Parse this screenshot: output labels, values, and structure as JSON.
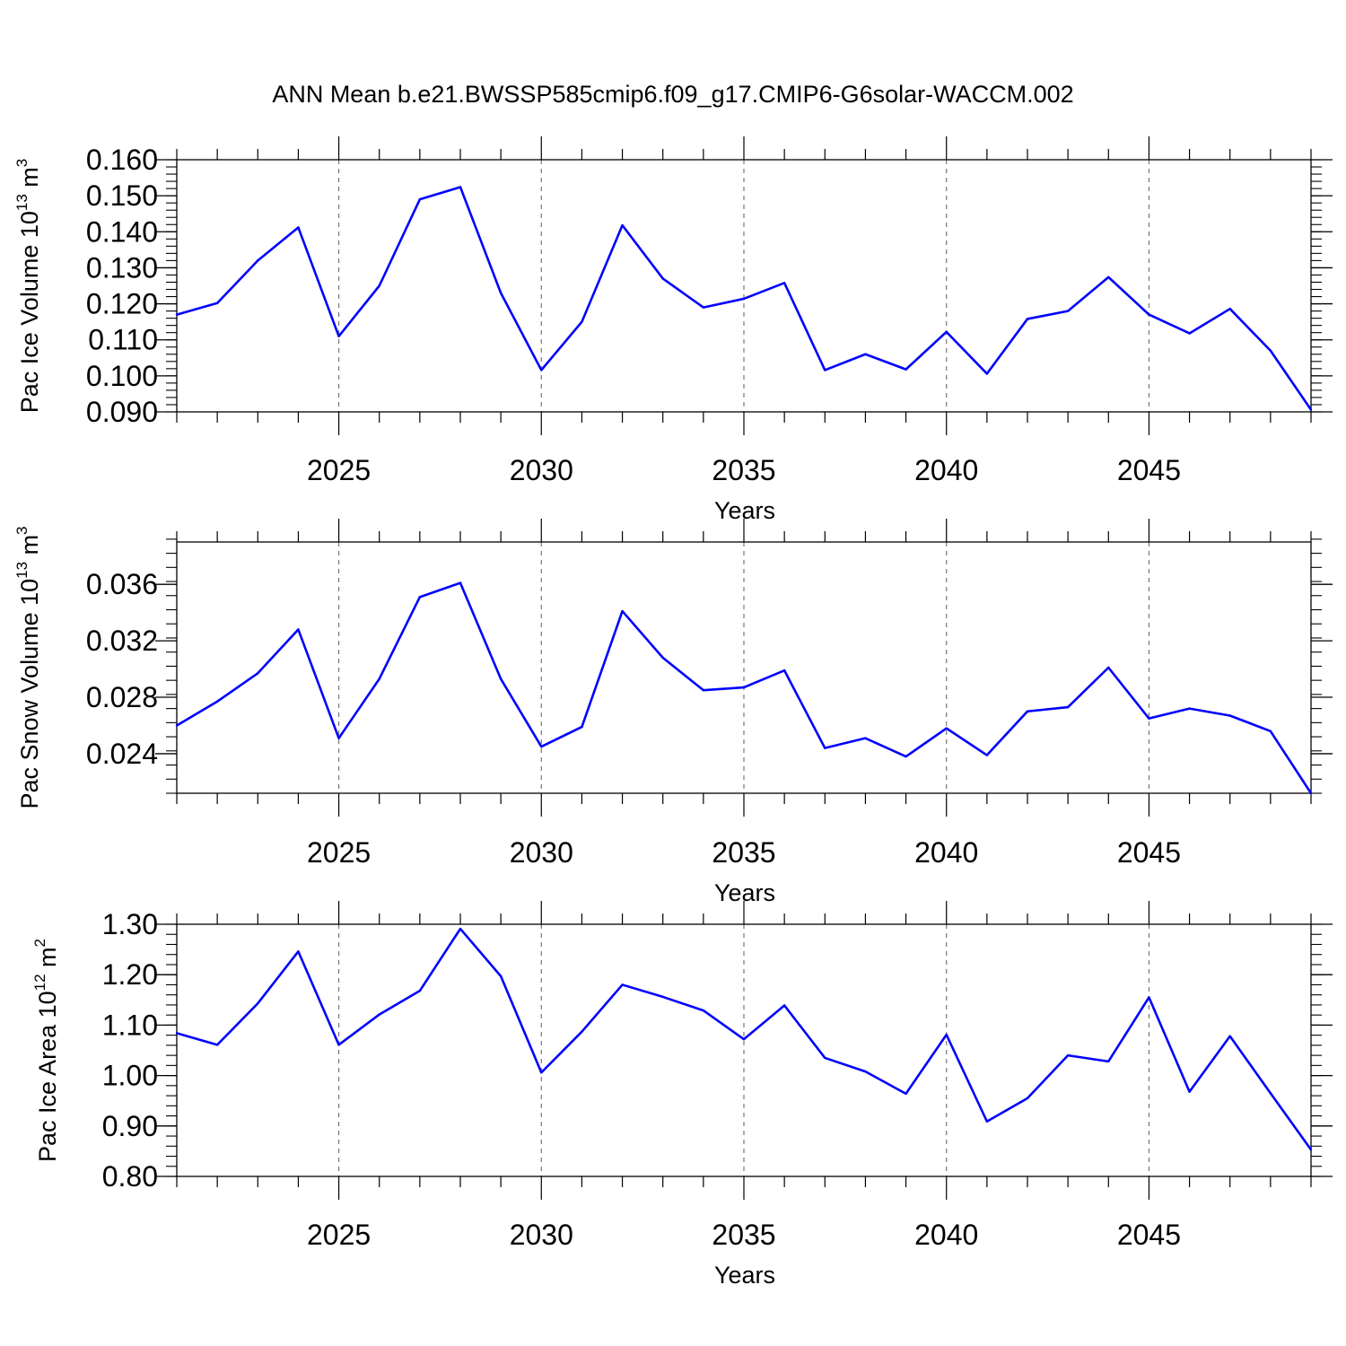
{
  "chart_data": {
    "title": "ANN Mean b.e21.BWSSP585cmip6.f09_g17.CMIP6-G6solar-WACCM.002",
    "panels": [
      {
        "type": "line",
        "ylabel_main": "Pac Ice Volume 10",
        "ylabel_exp": "13",
        "ylabel_unit": " m",
        "ylabel_unit_exp": "3",
        "xlabel": "Years",
        "xlim": [
          2021,
          2049
        ],
        "ylim": [
          0.09,
          0.16
        ],
        "yticks": [
          0.09,
          0.1,
          0.11,
          0.12,
          0.13,
          0.14,
          0.15,
          0.16
        ],
        "ytick_labels": [
          "0.090",
          "0.100",
          "0.110",
          "0.120",
          "0.130",
          "0.140",
          "0.150",
          "0.160"
        ],
        "yminor_step": 0.002,
        "xticks": [
          2025,
          2030,
          2035,
          2040,
          2045
        ],
        "xtick_labels": [
          "2025",
          "2030",
          "2035",
          "2040",
          "2045"
        ],
        "x": [
          2021,
          2022,
          2023,
          2024,
          2025,
          2026,
          2027,
          2028,
          2029,
          2030,
          2031,
          2032,
          2033,
          2034,
          2035,
          2036,
          2037,
          2038,
          2039,
          2040,
          2041,
          2042,
          2043,
          2044,
          2045,
          2046,
          2047,
          2048,
          2049
        ],
        "series": [
          {
            "name": "Pac Ice Volume",
            "color": "#0000ff",
            "values": [
              0.117,
              0.1202,
              0.132,
              0.1412,
              0.111,
              0.125,
              0.149,
              0.1524,
              0.123,
              0.1016,
              0.115,
              0.1418,
              0.127,
              0.119,
              0.1214,
              0.1258,
              0.1016,
              0.106,
              0.1018,
              0.1122,
              0.1006,
              0.1158,
              0.118,
              0.1274,
              0.117,
              0.1118,
              0.1186,
              0.107,
              0.0906
            ]
          }
        ]
      },
      {
        "type": "line",
        "ylabel_main": "Pac Snow Volume 10",
        "ylabel_exp": "13",
        "ylabel_unit": " m",
        "ylabel_unit_exp": "3",
        "xlabel": "Years",
        "xlim": [
          2021,
          2049
        ],
        "ylim": [
          0.0212,
          0.039
        ],
        "yticks": [
          0.024,
          0.028,
          0.032,
          0.036
        ],
        "ytick_labels": [
          "0.024",
          "0.028",
          "0.032",
          "0.036"
        ],
        "yminor_step": 0.001,
        "xticks": [
          2025,
          2030,
          2035,
          2040,
          2045
        ],
        "xtick_labels": [
          "2025",
          "2030",
          "2035",
          "2040",
          "2045"
        ],
        "x": [
          2021,
          2022,
          2023,
          2024,
          2025,
          2026,
          2027,
          2028,
          2029,
          2030,
          2031,
          2032,
          2033,
          2034,
          2035,
          2036,
          2037,
          2038,
          2039,
          2040,
          2041,
          2042,
          2043,
          2044,
          2045,
          2046,
          2047,
          2048,
          2049
        ],
        "series": [
          {
            "name": "Pac Snow Volume",
            "color": "#0000ff",
            "values": [
              0.026,
              0.0277,
              0.0297,
              0.0328,
              0.0251,
              0.0293,
              0.0351,
              0.0361,
              0.0293,
              0.0245,
              0.0259,
              0.0341,
              0.0308,
              0.0285,
              0.0287,
              0.0299,
              0.0244,
              0.0251,
              0.0238,
              0.0258,
              0.0239,
              0.027,
              0.0273,
              0.0301,
              0.0265,
              0.0272,
              0.0267,
              0.0256,
              0.0212
            ]
          }
        ]
      },
      {
        "type": "line",
        "ylabel_main": "Pac Ice Area 10",
        "ylabel_exp": "12",
        "ylabel_unit": " m",
        "ylabel_unit_exp": "2",
        "xlabel": "Years",
        "xlim": [
          2021,
          2049
        ],
        "ylim": [
          0.8,
          1.3
        ],
        "yticks": [
          0.8,
          0.9,
          1.0,
          1.1,
          1.2,
          1.3
        ],
        "ytick_labels": [
          "0.80",
          "0.90",
          "1.00",
          "1.10",
          "1.20",
          "1.30"
        ],
        "yminor_step": 0.02,
        "xticks": [
          2025,
          2030,
          2035,
          2040,
          2045
        ],
        "xtick_labels": [
          "2025",
          "2030",
          "2035",
          "2040",
          "2045"
        ],
        "x": [
          2021,
          2022,
          2023,
          2024,
          2025,
          2026,
          2027,
          2028,
          2029,
          2030,
          2031,
          2032,
          2033,
          2034,
          2035,
          2036,
          2037,
          2038,
          2039,
          2040,
          2041,
          2042,
          2043,
          2044,
          2045,
          2046,
          2047,
          2048,
          2049
        ],
        "series": [
          {
            "name": "Pac Ice Area",
            "color": "#0000ff",
            "values": [
              1.084,
              1.061,
              1.143,
              1.246,
              1.061,
              1.121,
              1.168,
              1.291,
              1.197,
              1.006,
              1.087,
              1.18,
              1.156,
              1.129,
              1.072,
              1.139,
              1.035,
              1.008,
              0.964,
              1.081,
              0.909,
              0.955,
              1.04,
              1.028,
              1.155,
              0.968,
              1.078,
              0.965,
              0.853
            ]
          }
        ]
      }
    ]
  }
}
